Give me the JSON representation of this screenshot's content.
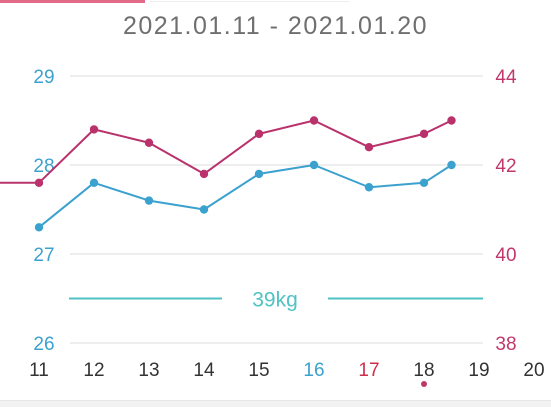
{
  "header": {
    "date_range": "2021.01.11 - 2021.01.20"
  },
  "chart_data": {
    "type": "line",
    "x_ticks": [
      "11",
      "12",
      "13",
      "14",
      "15",
      "16",
      "17",
      "18",
      "19",
      "20"
    ],
    "x_tick_colors": {
      "16": "#3ba1cf",
      "17": "#cf2e4a"
    },
    "selected_marker_x": 18,
    "left_axis": {
      "ticks": [
        "29",
        "28",
        "27",
        "26"
      ],
      "range": [
        26,
        29
      ],
      "color": "#3ba1cf"
    },
    "right_axis": {
      "ticks": [
        "44",
        "42",
        "40",
        "38"
      ],
      "range": [
        38,
        44
      ],
      "color": "#c2376b"
    },
    "series": [
      {
        "axis": "left",
        "color": "#3ba1cf",
        "points": [
          [
            11,
            27.3
          ],
          [
            12,
            27.8
          ],
          [
            13,
            27.6
          ],
          [
            14,
            27.5
          ],
          [
            15,
            27.9
          ],
          [
            16,
            28.0
          ],
          [
            17,
            27.75
          ],
          [
            18,
            27.8
          ],
          [
            18.5,
            28.0
          ]
        ]
      },
      {
        "axis": "right",
        "color": "#b9326b",
        "start_x": 10.3,
        "points": [
          [
            11,
            41.6
          ],
          [
            12,
            42.8
          ],
          [
            13,
            42.5
          ],
          [
            14,
            41.8
          ],
          [
            15,
            42.7
          ],
          [
            16,
            43.0
          ],
          [
            17,
            42.4
          ],
          [
            18,
            42.7
          ],
          [
            18.5,
            43.0
          ]
        ]
      }
    ],
    "target_line": {
      "label": "39kg",
      "value_right_axis": 39,
      "color": "#4fc2c4"
    },
    "grid": true
  },
  "colors": {
    "grid": "#dddddd",
    "x_tick_default": "#333333",
    "marker": "#c2376b"
  }
}
